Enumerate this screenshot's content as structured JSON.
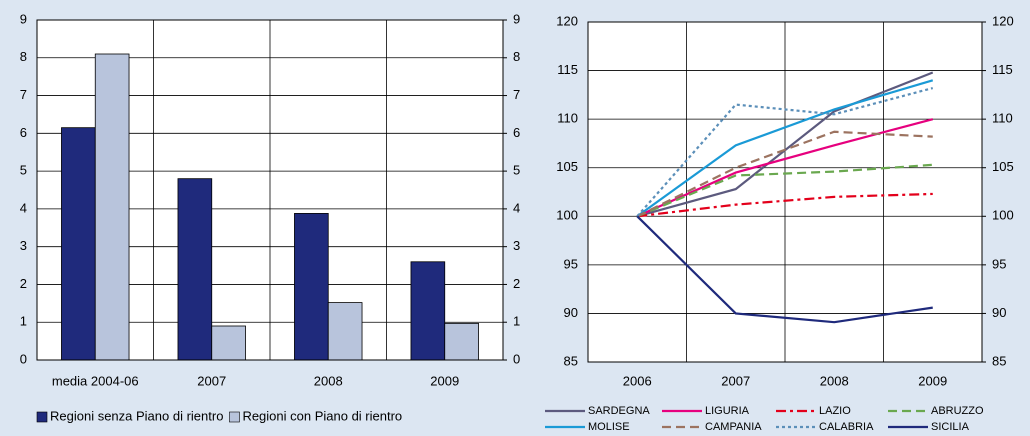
{
  "chart_data": [
    {
      "type": "bar",
      "categories": [
        "media 2004-06",
        "2007",
        "2008",
        "2009"
      ],
      "series": [
        {
          "name": "Regioni senza Piano di rientro",
          "color": "#1f2a7c",
          "values": [
            6.15,
            4.8,
            3.88,
            2.6
          ]
        },
        {
          "name": "Regioni con Piano di rientro",
          "color": "#b8c4dc",
          "values": [
            8.1,
            0.9,
            1.52,
            0.97
          ]
        }
      ],
      "ylim": [
        0,
        9
      ],
      "yticks": [
        0,
        1,
        2,
        3,
        4,
        5,
        6,
        7,
        8,
        9
      ],
      "y2lim": [
        0,
        9
      ],
      "y2ticks": [
        0,
        1,
        2,
        3,
        4,
        5,
        6,
        7,
        8,
        9
      ],
      "grid": true,
      "legend": "bottom"
    },
    {
      "type": "line",
      "categories": [
        "2006",
        "2007",
        "2008",
        "2009"
      ],
      "series": [
        {
          "name": "SARDEGNA",
          "color": "#5c5a7e",
          "dash": "solid",
          "values": [
            100,
            102.8,
            110.8,
            114.8
          ]
        },
        {
          "name": "LIGURIA",
          "color": "#e6007e",
          "dash": "solid",
          "values": [
            100,
            104.5,
            107.3,
            110
          ]
        },
        {
          "name": "LAZIO",
          "color": "#e3001b",
          "dash": "dashdot",
          "values": [
            100,
            101.2,
            102,
            102.3
          ]
        },
        {
          "name": "ABRUZZO",
          "color": "#6aa84f",
          "dash": "dash",
          "values": [
            100,
            104.2,
            104.6,
            105.3
          ]
        },
        {
          "name": "MOLISE",
          "color": "#1a9ad6",
          "dash": "solid",
          "values": [
            100,
            107.3,
            111,
            114
          ]
        },
        {
          "name": "CAMPANIA",
          "color": "#9c7360",
          "dash": "dash",
          "values": [
            100,
            105,
            108.7,
            108.2
          ]
        },
        {
          "name": "CALABRIA",
          "color": "#5b8fb9",
          "dash": "dot",
          "values": [
            100,
            111.5,
            110.5,
            113.2
          ]
        },
        {
          "name": "SICILIA",
          "color": "#1f2a7c",
          "dash": "solid",
          "values": [
            100,
            90,
            89.1,
            90.6
          ]
        }
      ],
      "ylim": [
        85,
        120
      ],
      "yticks": [
        85,
        90,
        95,
        100,
        105,
        110,
        115,
        120
      ],
      "y2lim": [
        85,
        120
      ],
      "y2ticks": [
        85,
        90,
        95,
        100,
        105,
        110,
        115,
        120
      ],
      "grid": true,
      "legend": "bottom"
    }
  ]
}
